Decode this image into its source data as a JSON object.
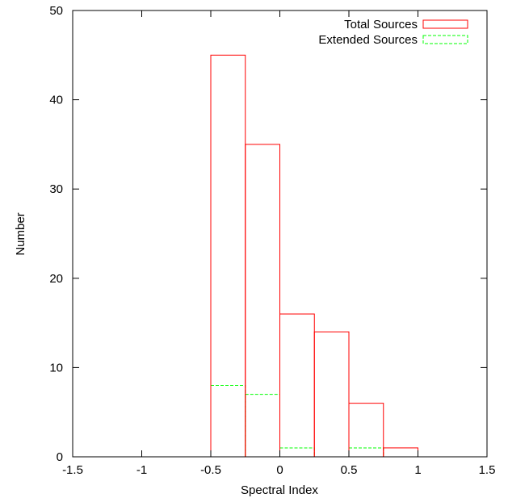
{
  "chart_data": {
    "type": "bar",
    "xlabel": "Spectral Index",
    "ylabel": "Number",
    "xlim": [
      -1.5,
      1.5
    ],
    "ylim": [
      0,
      50
    ],
    "xticks": [
      "-1.5",
      "-1",
      "-0.5",
      "0",
      "0.5",
      "1",
      "1.5"
    ],
    "yticks": [
      "0",
      "10",
      "20",
      "30",
      "40",
      "50"
    ],
    "bin_edges": [
      -0.5,
      -0.25,
      0,
      0.25,
      0.5,
      0.75,
      1.0
    ],
    "legend_position": "top-right",
    "grid": false,
    "series": [
      {
        "name": "Total Sources",
        "color": "#ff0000",
        "dash": "solid",
        "values": [
          45,
          35,
          16,
          14,
          6,
          1
        ]
      },
      {
        "name": "Extended Sources",
        "color": "#00ff00",
        "dash": "dashed",
        "values": [
          8,
          7,
          1,
          0,
          1,
          0
        ]
      }
    ]
  }
}
